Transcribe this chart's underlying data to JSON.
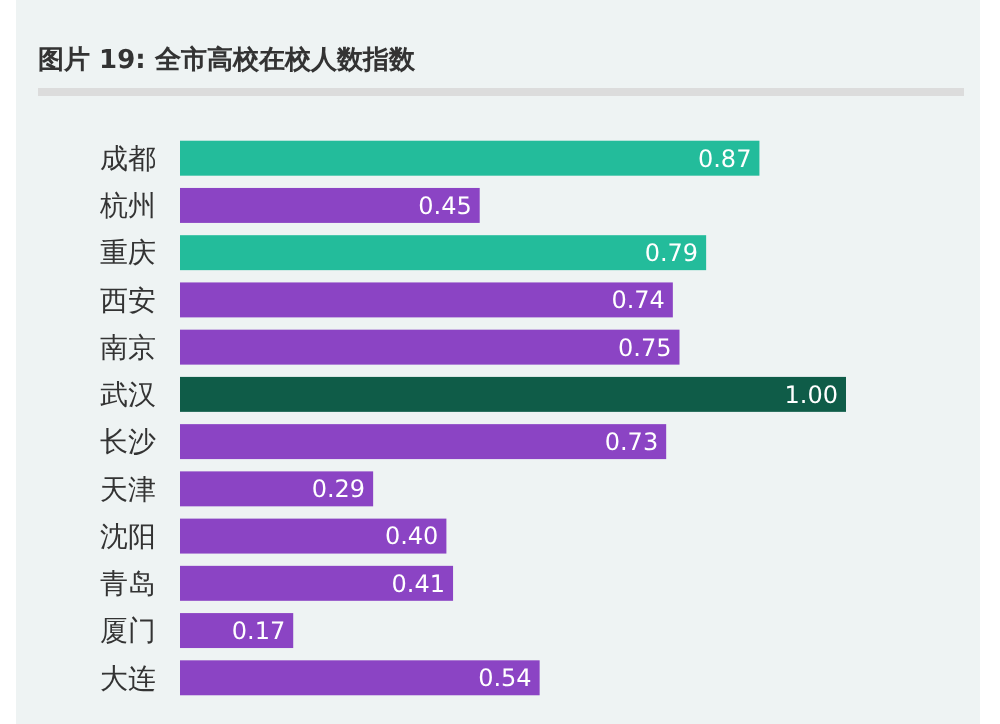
{
  "chart_data": {
    "type": "bar",
    "orientation": "horizontal",
    "title": "图片 19: 全市高校在校人数指数",
    "categories": [
      "成都",
      "杭州",
      "重庆",
      "西安",
      "南京",
      "武汉",
      "长沙",
      "天津",
      "沈阳",
      "青岛",
      "厦门",
      "大连"
    ],
    "values": [
      0.87,
      0.45,
      0.79,
      0.74,
      0.75,
      1.0,
      0.73,
      0.29,
      0.4,
      0.41,
      0.17,
      0.54
    ],
    "value_labels": [
      "0.87",
      "0.45",
      "0.79",
      "0.74",
      "0.75",
      "1.00",
      "0.73",
      "0.29",
      "0.40",
      "0.41",
      "0.17",
      "0.54"
    ],
    "colors": [
      "#23bc9b",
      "#8b44c4",
      "#23bc9b",
      "#8b44c4",
      "#8b44c4",
      "#0f5c48",
      "#8b44c4",
      "#8b44c4",
      "#8b44c4",
      "#8b44c4",
      "#8b44c4",
      "#8b44c4"
    ]
  }
}
